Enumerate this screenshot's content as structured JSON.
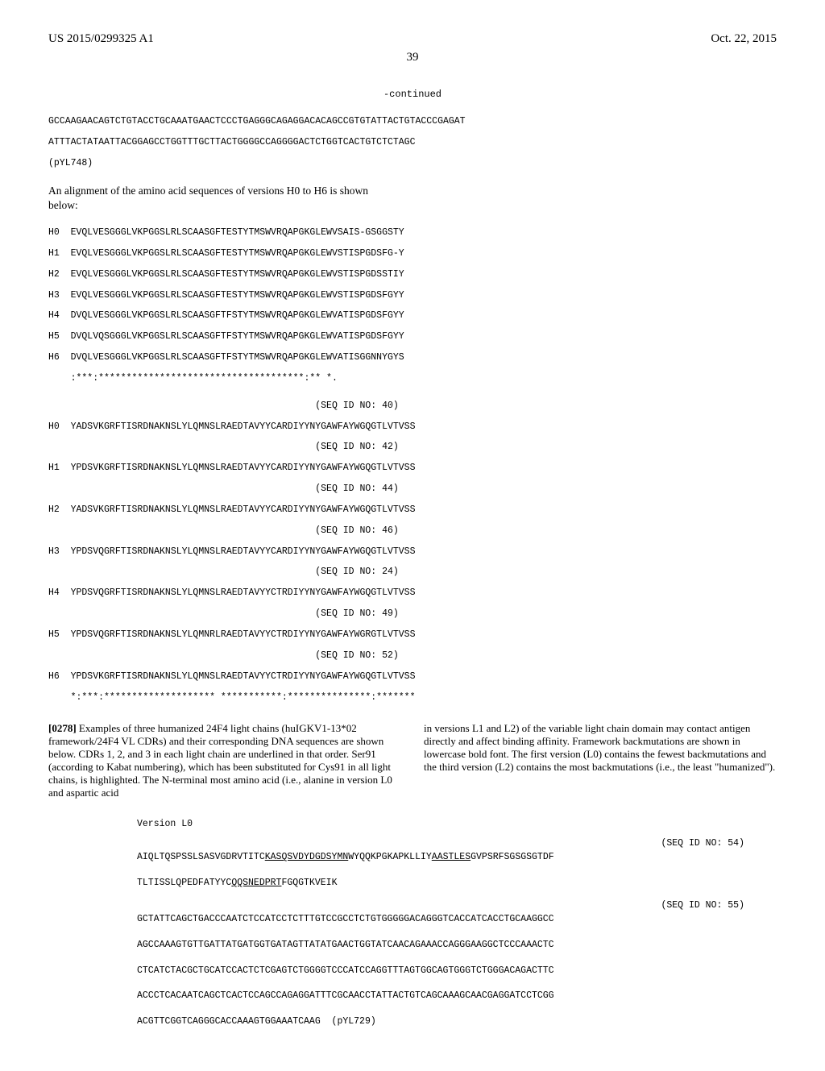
{
  "header": {
    "pub_number": "US 2015/0299325 A1",
    "date": "Oct. 22, 2015",
    "page": "39"
  },
  "continued": "-continued",
  "top_seq": {
    "line1": "GCCAAGAACAGTCTGTACCTGCAAATGAACTCCCTGAGGGCAGAGGACACAGCCGTGTATTACTGTACCCGAGAT",
    "line2": "ATTTACTATAATTACGGAGCCTGGTTTGCTTACTGGGGCCAGGGGACTCTGGTCACTGTCTCTAGC",
    "plasmid": "(pYL748)"
  },
  "align_intro": "An alignment of the amino acid sequences of versions H0 to H6 is shown below:",
  "alignment_block1": {
    "rows": [
      {
        "id": "H0",
        "seq": "EVQLVESGGGLVKPGGSLRLSCAASGFTESTYTMSWVRQAPGKGLEWVSAIS-GSGGSTY"
      },
      {
        "id": "H1",
        "seq": "EVQLVESGGGLVKPGGSLRLSCAASGFTESTYTMSWVRQAPGKGLEWVSTISPGDSFG-Y"
      },
      {
        "id": "H2",
        "seq": "EVQLVESGGGLVKPGGSLRLSCAASGFTESTYTMSWVRQAPGKGLEWVSTISPGDSSTIY"
      },
      {
        "id": "H3",
        "seq": "EVQLVESGGGLVKPGGSLRLSCAASGFTESTYTMSWVRQAPGKGLEWVSTISPGDSFGYY"
      },
      {
        "id": "H4",
        "seq": "DVQLVESGGGLVKPGGSLRLSCAASGFTFSTYTMSWVRQAPGKGLEWVATISPGDSFGYY"
      },
      {
        "id": "H5",
        "seq": "DVQLVQSGGGLVKPGGSLRLSCAASGFTFSTYTMSWVRQAPGKGLEWVATISPGDSFGYY"
      },
      {
        "id": "H6",
        "seq": "DVQLVESGGGLVKPGGSLRLSCAASGFTFSTYTMSWVRQAPGKGLEWVATISGGNNYGYS"
      }
    ],
    "consensus": ":***:*************************************:** *. "
  },
  "alignment_block2": {
    "rows": [
      {
        "seqid": "(SEQ ID NO: 40)",
        "id": "H0",
        "seq": "YADSVKGRFTISRDNAKNSLYLQMNSLRAEDTAVYYCARDIYYNYGAWFAYWGQGTLVTVSS"
      },
      {
        "seqid": "(SEQ ID NO: 42)",
        "id": "H1",
        "seq": "YPDSVKGRFTISRDNAKNSLYLQMNSLRAEDTAVYYCARDIYYNYGAWFAYWGQGTLVTVSS"
      },
      {
        "seqid": "(SEQ ID NO: 44)",
        "id": "H2",
        "seq": "YADSVKGRFTISRDNAKNSLYLQMNSLRAEDTAVYYCARDIYYNYGAWFAYWGQGTLVTVSS"
      },
      {
        "seqid": "(SEQ ID NO: 46)",
        "id": "H3",
        "seq": "YPDSVQGRFTISRDNAKNSLYLQMNSLRAEDTAVYYCARDIYYNYGAWFAYWGQGTLVTVSS"
      },
      {
        "seqid": "(SEQ ID NO: 24)",
        "id": "H4",
        "seq": "YPDSVQGRFTISRDNAKNSLYLQMNSLRAEDTAVYYCTRDIYYNYGAWFAYWGQGTLVTVSS"
      },
      {
        "seqid": "(SEQ ID NO: 49)",
        "id": "H5",
        "seq": "YPDSVQGRFTISRDNAKNSLYLQMNRLRAEDTAVYYCTRDIYYNYGAWFAYWGRGTLVTVSS"
      },
      {
        "seqid": "(SEQ ID NO: 52)",
        "id": "H6",
        "seq": "YPDSVKGRFTISRDNAKNSLYLQMNSLRAEDTAVYYCTRDIYYNYGAWFAYWGQGTLVTVSS"
      }
    ],
    "consensus": "*:***:******************** ***********:***************:*******"
  },
  "para278": {
    "num": "[0278]",
    "left": "Examples of three humanized 24F4 light chains (huIGKV1-13*02 framework/24F4 VL CDRs) and their corresponding DNA sequences are shown below. CDRs 1, 2, and 3 in each light chain are underlined in that order. Ser91 (according to Kabat numbering), which has been substituted for Cys91 in all light chains, is highlighted. The N-terminal most amino acid (i.e., alanine in version L0 and aspartic acid",
    "right": "in versions L1 and L2) of the variable light chain domain may contact antigen directly and affect binding affinity. Framework backmutations are shown in lowercase bold font. The first version (L0) contains the fewest backmutations and the third version (L2) contains the most backmutations (i.e., the least \"humanized\")."
  },
  "version_l0": {
    "title": "Version L0",
    "seqid_aa": "(SEQ ID NO: 54)",
    "aa_line1_pre": "AIQLTQSPSSLSASVGDRVTITC",
    "aa_line1_cdr1": "KASQSVDYDGDSYMN",
    "aa_line1_mid": "WYQQKPGKAPKLLIY",
    "aa_line1_cdr2": "AASTLES",
    "aa_line1_post": "GVPSRFSGSGSGTDF",
    "aa_line2_pre": "TLTISSLQPEDFATYYC",
    "aa_line2_cdr3": "QQSNEDPRT",
    "aa_line2_post": "FGQGTKVEIK",
    "seqid_dna": "(SEQ ID NO: 55)",
    "dna": [
      "GCTATTCAGCTGACCCAATCTCCATCCTCTTTGTCCGCCTCTGTGGGGGACAGGGTCACCATCACCTGCAAGGCC",
      "AGCCAAAGTGTTGATTATGATGGTGATAGTTATATGAACTGGTATCAACAGAAACCAGGGAAGGCTCCCAAACTC",
      "CTCATCTACGCTGCATCCACTCTCGAGTCTGGGGTCCCATCCAGGTTTAGTGGCAGTGGGTCTGGGACAGACTTC",
      "ACCCTCACAATCAGCTCACTCCAGCCAGAGGATTTCGCAACCTATTACTGTCAGCAAAGCAACGAGGATCCTCGG",
      "ACGTTCGGTCAGGGCACCAAAGTGGAAATCAAG  (pYL729)"
    ]
  }
}
